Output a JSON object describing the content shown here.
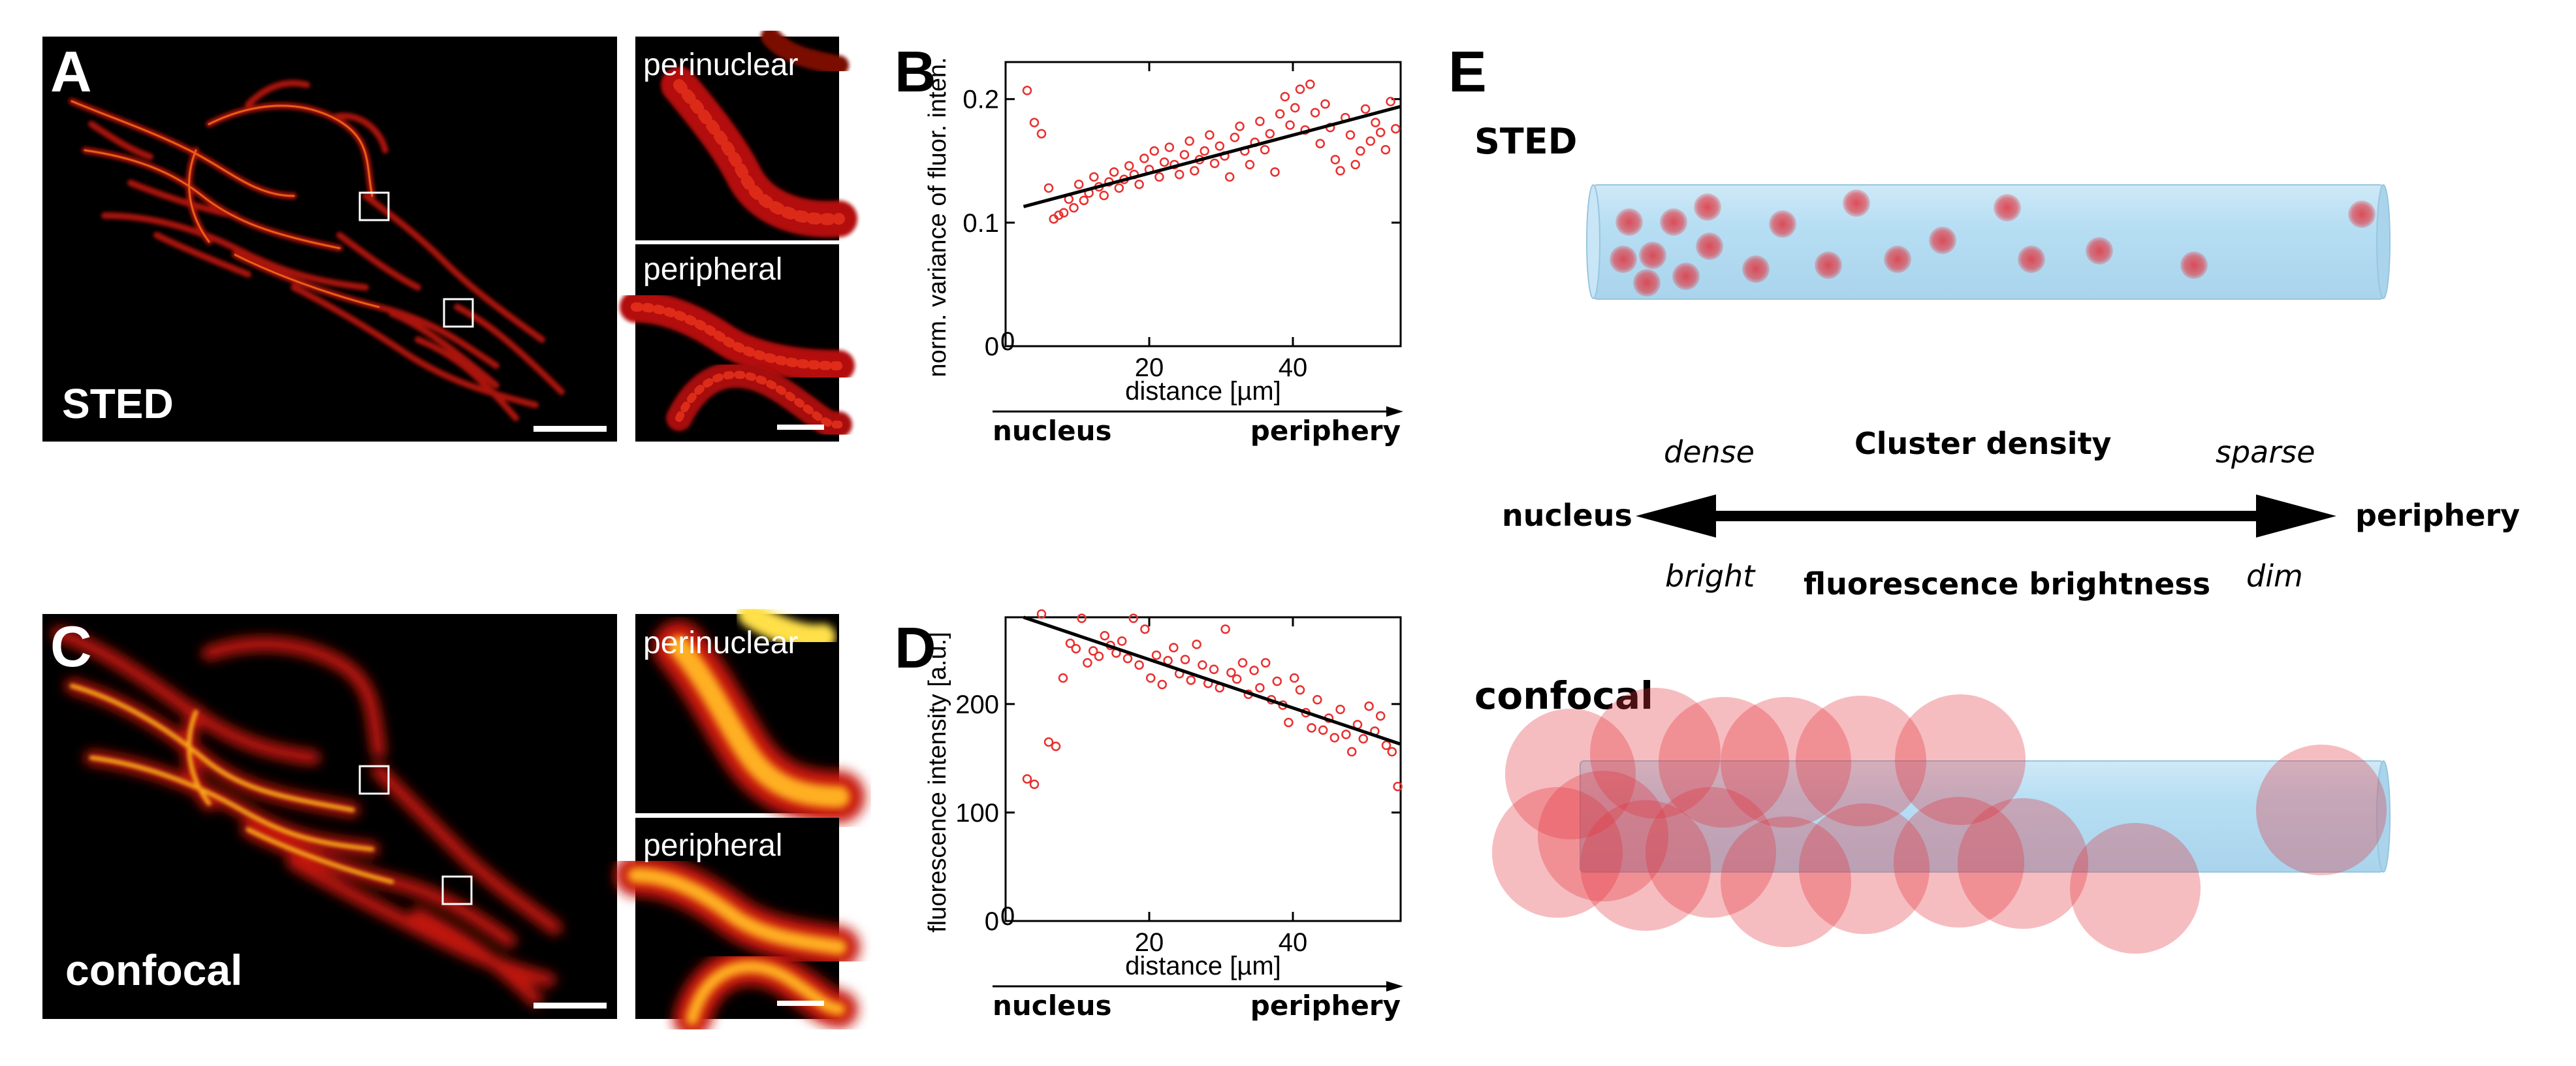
{
  "panels": {
    "A": {
      "letter": "A",
      "label": "STED"
    },
    "inset_labels": {
      "perinuclear": "perinuclear",
      "peripheral": "peripheral"
    },
    "C": {
      "letter": "C",
      "label": "confocal"
    },
    "B": {
      "letter": "B"
    },
    "D": {
      "letter": "D"
    },
    "E": {
      "letter": "E"
    }
  },
  "chart_data": [
    {
      "id": "B",
      "type": "scatter",
      "title": "",
      "xlabel": "distance [µm]",
      "ylabel": "norm. variance of fluor. inten.",
      "xlim": [
        0,
        55
      ],
      "ylim": [
        0,
        0.23
      ],
      "xticks": [
        {
          "v": 20,
          "label": "20"
        },
        {
          "v": 40,
          "label": "40"
        }
      ],
      "yticks": [
        {
          "v": 0,
          "label": "0"
        },
        {
          "v": 0.1,
          "label": "0.1"
        },
        {
          "v": 0.2,
          "label": "0.2"
        }
      ],
      "origin_label": "0",
      "arrow_left": "nucleus",
      "arrow_right": "periphery",
      "fit": {
        "x0": 2.5,
        "y0": 0.113,
        "x1": 55,
        "y1": 0.194
      },
      "x": [
        3,
        4,
        5,
        6,
        6.7,
        7.4,
        8.1,
        8.8,
        9.5,
        10.2,
        10.9,
        11.6,
        12.3,
        13,
        13.7,
        14.4,
        15.1,
        15.8,
        16.5,
        17.2,
        17.9,
        18.6,
        19.3,
        20,
        20.7,
        21.4,
        22.1,
        22.8,
        23.5,
        24.2,
        24.9,
        25.6,
        26.3,
        27,
        27.7,
        28.4,
        29.1,
        29.8,
        30.5,
        31.2,
        31.9,
        32.6,
        33.3,
        34,
        34.7,
        35.4,
        36.1,
        36.8,
        37.5,
        38.2,
        38.9,
        39.6,
        40.3,
        41,
        41.7,
        42.4,
        43.1,
        43.8,
        44.5,
        45.2,
        45.9,
        46.6,
        47.3,
        48,
        48.7,
        49.4,
        50.1,
        50.8,
        51.5,
        52.2,
        52.9,
        53.6,
        54.3
      ],
      "y": [
        0.207,
        0.181,
        0.172,
        0.128,
        0.103,
        0.106,
        0.108,
        0.119,
        0.112,
        0.131,
        0.118,
        0.124,
        0.137,
        0.129,
        0.122,
        0.133,
        0.141,
        0.128,
        0.135,
        0.146,
        0.139,
        0.131,
        0.152,
        0.143,
        0.158,
        0.137,
        0.149,
        0.161,
        0.147,
        0.139,
        0.155,
        0.166,
        0.142,
        0.151,
        0.158,
        0.171,
        0.148,
        0.162,
        0.154,
        0.137,
        0.169,
        0.178,
        0.158,
        0.147,
        0.165,
        0.182,
        0.159,
        0.172,
        0.141,
        0.188,
        0.202,
        0.179,
        0.193,
        0.208,
        0.175,
        0.212,
        0.189,
        0.164,
        0.196,
        0.177,
        0.151,
        0.142,
        0.185,
        0.171,
        0.147,
        0.158,
        0.192,
        0.166,
        0.181,
        0.173,
        0.159,
        0.198,
        0.176
      ]
    },
    {
      "id": "D",
      "type": "scatter",
      "title": "",
      "xlabel": "distance [µm]",
      "ylabel": "fluorescence intensity [a.u.]",
      "xlim": [
        0,
        55
      ],
      "ylim": [
        0,
        280
      ],
      "xticks": [
        {
          "v": 20,
          "label": "20"
        },
        {
          "v": 40,
          "label": "40"
        }
      ],
      "yticks": [
        {
          "v": 0,
          "label": "0"
        },
        {
          "v": 100,
          "label": "100"
        },
        {
          "v": 200,
          "label": "200"
        }
      ],
      "origin_label": "0",
      "arrow_left": "nucleus",
      "arrow_right": "periphery",
      "fit": {
        "x0": 2.5,
        "y0": 280,
        "x1": 55,
        "y1": 163
      },
      "x": [
        3,
        4,
        5,
        6,
        7,
        8,
        9,
        9.8,
        10.6,
        11.4,
        12.2,
        13,
        13.8,
        14.6,
        15.4,
        16.2,
        17,
        17.8,
        18.6,
        19.4,
        20.2,
        21,
        21.8,
        22.6,
        23.4,
        24.2,
        25,
        25.8,
        26.6,
        27.4,
        28.2,
        29,
        29.8,
        30.6,
        31.4,
        32.2,
        33,
        33.8,
        34.6,
        35.4,
        36.2,
        37,
        37.8,
        38.6,
        39.4,
        40.2,
        41,
        41.8,
        42.6,
        43.4,
        44.2,
        45,
        45.8,
        46.6,
        47.4,
        48.2,
        49,
        49.8,
        50.6,
        51.4,
        52.2,
        53,
        53.8,
        54.6
      ],
      "y": [
        131,
        126,
        283,
        165,
        161,
        224,
        256,
        251,
        279,
        238,
        249,
        244,
        263,
        254,
        247,
        258,
        242,
        279,
        236,
        269,
        224,
        245,
        218,
        240,
        252,
        228,
        241,
        222,
        255,
        236,
        219,
        232,
        215,
        269,
        229,
        223,
        238,
        209,
        231,
        215,
        238,
        204,
        221,
        199,
        183,
        224,
        213,
        192,
        178,
        204,
        176,
        187,
        169,
        195,
        172,
        156,
        181,
        168,
        198,
        175,
        189,
        162,
        156,
        124
      ]
    }
  ],
  "schematic": {
    "sted_label": "STED",
    "confocal_label": "confocal",
    "nucleus": "nucleus",
    "periphery": "periphery",
    "dense": "dense",
    "sparse": "sparse",
    "cluster_density": "Cluster density",
    "bright": "bright",
    "dim": "dim",
    "fluorescence_brightness": "fluorescence brightness"
  },
  "colors": {
    "scatter_point": "#e8302f",
    "fit_line": "#000000",
    "tube": "#bfe1f2",
    "cluster": "#e2323c"
  }
}
